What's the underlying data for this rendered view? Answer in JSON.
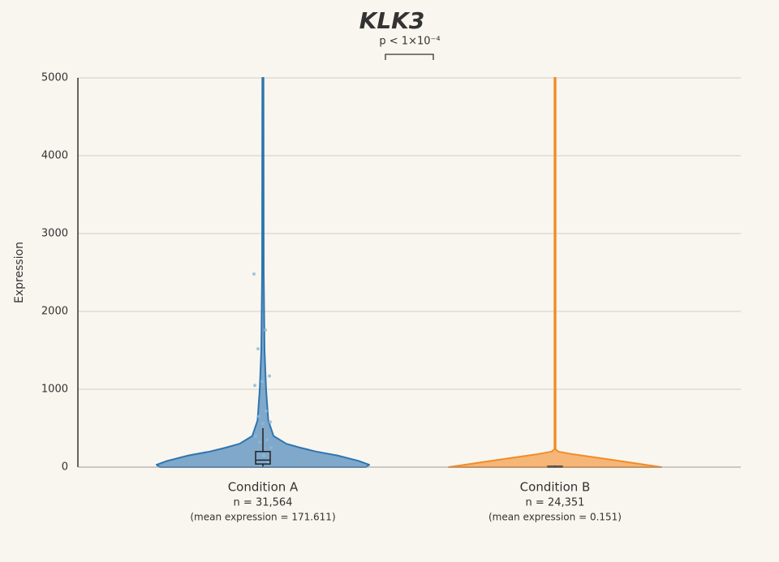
{
  "chart_data": {
    "type": "violin",
    "title": "KLK3",
    "annotation": "p < 1×10⁻⁴",
    "ylabel": "Expression",
    "ylim": [
      0,
      5000
    ],
    "yticks": [
      0,
      1000,
      2000,
      3000,
      4000,
      5000
    ],
    "grid": true,
    "series": [
      {
        "name": "Condition A",
        "color": "#2e75b0",
        "n_label": "n = 31,564",
        "mean_label": "(mean expression = 171.611)",
        "density": {
          "y": [
            0,
            30,
            80,
            150,
            200,
            250,
            300,
            400,
            600,
            1000,
            1500,
            2500,
            5000
          ],
          "width": [
            0.97,
            1.0,
            0.9,
            0.7,
            0.5,
            0.35,
            0.22,
            0.1,
            0.05,
            0.03,
            0.015,
            0.008,
            0.005
          ]
        },
        "box": {
          "whisker_low": 0,
          "q1": 40,
          "median": 90,
          "q3": 200,
          "whisker_high": 500
        },
        "points": [
          2480,
          1760,
          1520,
          1170,
          1100,
          1050,
          720,
          650,
          580,
          560,
          400,
          350,
          320,
          250,
          150,
          100,
          60,
          30
        ]
      },
      {
        "name": "Condition B",
        "color": "#f28c28",
        "n_label": "n = 24,351",
        "mean_label": "(mean expression = 0.151)",
        "density": {
          "y": [
            0,
            30,
            80,
            130,
            170,
            200,
            230,
            5000
          ],
          "width": [
            1.0,
            0.85,
            0.6,
            0.35,
            0.15,
            0.03,
            0.005,
            0.005
          ]
        },
        "box": {
          "whisker_low": 0,
          "q1": 0,
          "median": 0,
          "q3": 10,
          "whisker_high": 20
        },
        "points": []
      }
    ]
  }
}
